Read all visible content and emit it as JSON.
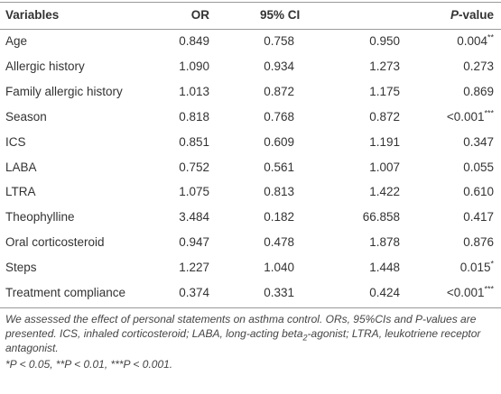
{
  "table": {
    "header": {
      "variable": "Variables",
      "or": "OR",
      "ci": "95% CI",
      "p_italic": "P",
      "p_rest": "-value"
    },
    "rows": [
      {
        "variable": "Age",
        "or": "0.849",
        "ci_low": "0.758",
        "ci_high": "0.950",
        "p": "0.004",
        "sig": "**"
      },
      {
        "variable": "Allergic history",
        "or": "1.090",
        "ci_low": "0.934",
        "ci_high": "1.273",
        "p": "0.273"
      },
      {
        "variable": "Family allergic history",
        "or": "1.013",
        "ci_low": "0.872",
        "ci_high": "1.175",
        "p": "0.869"
      },
      {
        "variable": "Season",
        "or": "0.818",
        "ci_low": "0.768",
        "ci_high": "0.872",
        "p": "<0.001",
        "sig": "***"
      },
      {
        "variable": "ICS",
        "or": "0.851",
        "ci_low": "0.609",
        "ci_high": "1.191",
        "p": "0.347"
      },
      {
        "variable": "LABA",
        "or": "0.752",
        "ci_low": "0.561",
        "ci_high": "1.007",
        "p": "0.055"
      },
      {
        "variable": "LTRA",
        "or": "1.075",
        "ci_low": "0.813",
        "ci_high": "1.422",
        "p": "0.610"
      },
      {
        "variable": "Theophylline",
        "or": "3.484",
        "ci_low": "0.182",
        "ci_high": "66.858",
        "p": "0.417"
      },
      {
        "variable": "Oral corticosteroid",
        "or": "0.947",
        "ci_low": "0.478",
        "ci_high": "1.878",
        "p": "0.876"
      },
      {
        "variable": "Steps",
        "or": "1.227",
        "ci_low": "1.040",
        "ci_high": "1.448",
        "p": "0.015",
        "sig": "*"
      },
      {
        "variable": "Treatment compliance",
        "or": "0.374",
        "ci_low": "0.331",
        "ci_high": "0.424",
        "p": "<0.001",
        "sig": "***"
      }
    ],
    "note": [
      "We assessed the effect of personal statements on asthma control. ORs, 95%CIs and P-values are presented. ICS, inhaled corticosteroid; LABA, long-acting beta",
      "2",
      "-agonist; LTRA, leukotriene receptor antagonist."
    ],
    "significance": "*P < 0.05, **P < 0.01, ***P < 0.001."
  }
}
